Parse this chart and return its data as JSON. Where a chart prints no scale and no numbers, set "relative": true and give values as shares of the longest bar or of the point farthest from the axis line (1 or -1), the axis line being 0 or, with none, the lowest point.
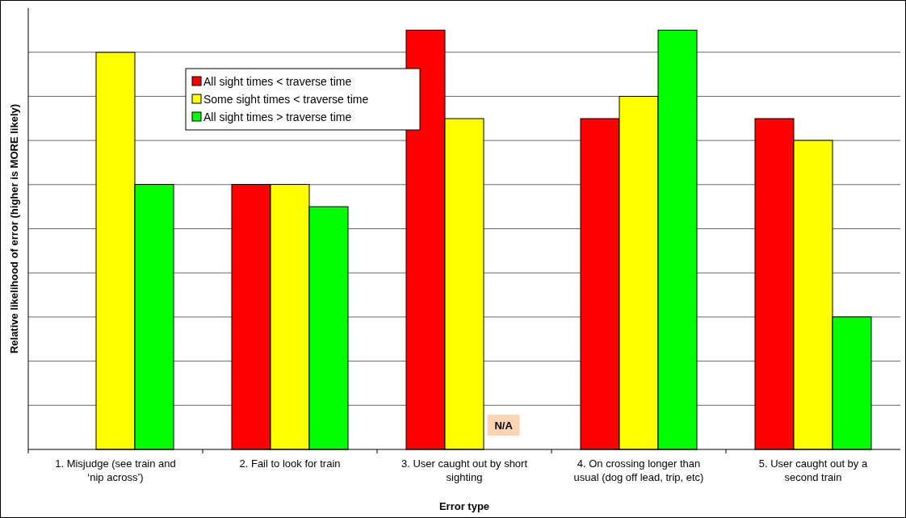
{
  "chart_data": {
    "type": "bar",
    "relative": true,
    "xlabel": "Error type",
    "ylabel": "Relative likelihood of error (higher is MORE likely)",
    "categories": [
      "1. Misjudge (see train and ‘nip across’)",
      "2. Fail to look for train",
      "3. User caught out by short sighting",
      "4. On crossing longer than usual (dog off lead, trip, etc)",
      "5. User caught out by a second train"
    ],
    "series": [
      {
        "name": "All sight times < traverse time",
        "color": "#ff0000",
        "values": [
          null,
          0.632,
          1,
          0.789,
          0.789
        ]
      },
      {
        "name": "Some sight times < traverse time",
        "color": "#ffff00",
        "values": [
          0.947,
          0.632,
          0.789,
          0.842,
          0.737
        ]
      },
      {
        "name": "All sight times > traverse time",
        "color": "#00ff00",
        "values": [
          0.632,
          0.579,
          null,
          1,
          0.316
        ]
      }
    ],
    "annotations": [
      "N/A"
    ],
    "grid": true,
    "legend": "top left"
  }
}
